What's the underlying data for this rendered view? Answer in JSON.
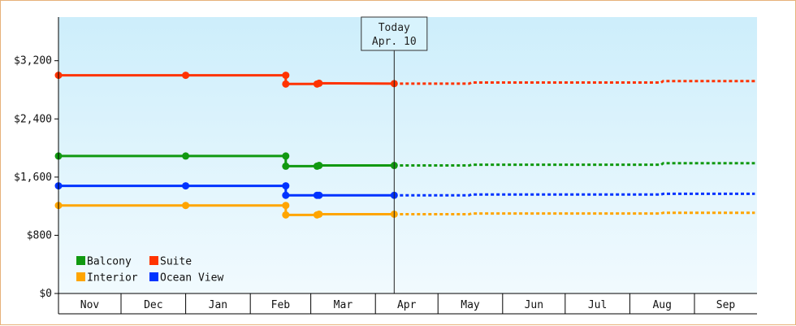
{
  "chart_data": {
    "type": "line",
    "title": "",
    "xlabel": "",
    "ylabel": "",
    "ylim": [
      0,
      3800
    ],
    "y_ticks": [
      0,
      800,
      1600,
      2400,
      3200
    ],
    "y_tick_labels": [
      "$0",
      "$800",
      "$1,600",
      "$2,400",
      "$3,200"
    ],
    "x_range": [
      "2023-11-01",
      "2024-09-30"
    ],
    "months": [
      {
        "label": "Nov",
        "start": "2023-11-01"
      },
      {
        "label": "Dec",
        "start": "2023-12-01"
      },
      {
        "label": "Jan",
        "start": "2024-01-01"
      },
      {
        "label": "Feb",
        "start": "2024-02-01"
      },
      {
        "label": "Mar",
        "start": "2024-03-01"
      },
      {
        "label": "Apr",
        "start": "2024-04-01"
      },
      {
        "label": "May",
        "start": "2024-05-01"
      },
      {
        "label": "Jun",
        "start": "2024-06-01"
      },
      {
        "label": "Jul",
        "start": "2024-07-01"
      },
      {
        "label": "Aug",
        "start": "2024-08-01"
      },
      {
        "label": "Sep",
        "start": "2024-09-01"
      }
    ],
    "today": {
      "date": "2024-04-10",
      "label_line1": "Today",
      "label_line2": "Apr. 10"
    },
    "legend_placement": "bottom-left",
    "grid": false,
    "background": {
      "top": "#cdeefb",
      "bottom": "#f1fafe"
    },
    "series": [
      {
        "name": "Suite",
        "color": "#ff3300",
        "historical": [
          [
            "2023-11-01",
            3000
          ],
          [
            "2024-01-01",
            3000
          ],
          [
            "2024-02-18",
            3000
          ],
          [
            "2024-02-18",
            2880
          ],
          [
            "2024-03-04",
            2880
          ],
          [
            "2024-03-05",
            2890
          ],
          [
            "2024-04-10",
            2885
          ]
        ],
        "markers": [
          [
            "2023-11-01",
            3000
          ],
          [
            "2024-01-01",
            3000
          ],
          [
            "2024-02-18",
            3000
          ],
          [
            "2024-02-18",
            2880
          ],
          [
            "2024-03-04",
            2880
          ],
          [
            "2024-03-05",
            2890
          ],
          [
            "2024-04-10",
            2885
          ]
        ],
        "projected": [
          [
            "2024-04-10",
            2885
          ],
          [
            "2024-05-16",
            2885
          ],
          [
            "2024-05-17",
            2900
          ],
          [
            "2024-08-16",
            2900
          ],
          [
            "2024-08-17",
            2920
          ],
          [
            "2024-09-30",
            2920
          ]
        ]
      },
      {
        "name": "Balcony",
        "color": "#119911",
        "historical": [
          [
            "2023-11-01",
            1890
          ],
          [
            "2024-01-01",
            1890
          ],
          [
            "2024-02-18",
            1890
          ],
          [
            "2024-02-18",
            1750
          ],
          [
            "2024-03-04",
            1750
          ],
          [
            "2024-03-05",
            1760
          ],
          [
            "2024-04-10",
            1760
          ]
        ],
        "markers": [
          [
            "2023-11-01",
            1890
          ],
          [
            "2024-01-01",
            1890
          ],
          [
            "2024-02-18",
            1890
          ],
          [
            "2024-02-18",
            1750
          ],
          [
            "2024-03-04",
            1750
          ],
          [
            "2024-03-05",
            1760
          ],
          [
            "2024-04-10",
            1760
          ]
        ],
        "projected": [
          [
            "2024-04-10",
            1760
          ],
          [
            "2024-05-16",
            1760
          ],
          [
            "2024-05-17",
            1770
          ],
          [
            "2024-08-16",
            1770
          ],
          [
            "2024-08-17",
            1790
          ],
          [
            "2024-09-30",
            1790
          ]
        ]
      },
      {
        "name": "Ocean View",
        "color": "#0033ff",
        "historical": [
          [
            "2023-11-01",
            1480
          ],
          [
            "2024-01-01",
            1480
          ],
          [
            "2024-02-18",
            1480
          ],
          [
            "2024-02-18",
            1350
          ],
          [
            "2024-03-04",
            1350
          ],
          [
            "2024-03-05",
            1350
          ],
          [
            "2024-04-10",
            1350
          ]
        ],
        "markers": [
          [
            "2023-11-01",
            1480
          ],
          [
            "2024-01-01",
            1480
          ],
          [
            "2024-02-18",
            1480
          ],
          [
            "2024-02-18",
            1350
          ],
          [
            "2024-03-04",
            1350
          ],
          [
            "2024-03-05",
            1350
          ],
          [
            "2024-04-10",
            1350
          ]
        ],
        "projected": [
          [
            "2024-04-10",
            1350
          ],
          [
            "2024-05-16",
            1350
          ],
          [
            "2024-05-17",
            1360
          ],
          [
            "2024-08-16",
            1360
          ],
          [
            "2024-08-17",
            1370
          ],
          [
            "2024-09-30",
            1370
          ]
        ]
      },
      {
        "name": "Interior",
        "color": "#ffa500",
        "historical": [
          [
            "2023-11-01",
            1210
          ],
          [
            "2024-01-01",
            1210
          ],
          [
            "2024-02-18",
            1210
          ],
          [
            "2024-02-18",
            1080
          ],
          [
            "2024-03-04",
            1080
          ],
          [
            "2024-03-05",
            1090
          ],
          [
            "2024-04-10",
            1090
          ]
        ],
        "markers": [
          [
            "2023-11-01",
            1210
          ],
          [
            "2024-01-01",
            1210
          ],
          [
            "2024-02-18",
            1210
          ],
          [
            "2024-02-18",
            1080
          ],
          [
            "2024-03-04",
            1080
          ],
          [
            "2024-03-05",
            1090
          ],
          [
            "2024-04-10",
            1090
          ]
        ],
        "projected": [
          [
            "2024-04-10",
            1090
          ],
          [
            "2024-05-16",
            1090
          ],
          [
            "2024-05-17",
            1100
          ],
          [
            "2024-08-16",
            1100
          ],
          [
            "2024-08-17",
            1110
          ],
          [
            "2024-09-30",
            1110
          ]
        ]
      }
    ],
    "legend_order": [
      "Balcony",
      "Suite",
      "Interior",
      "Ocean View"
    ]
  }
}
